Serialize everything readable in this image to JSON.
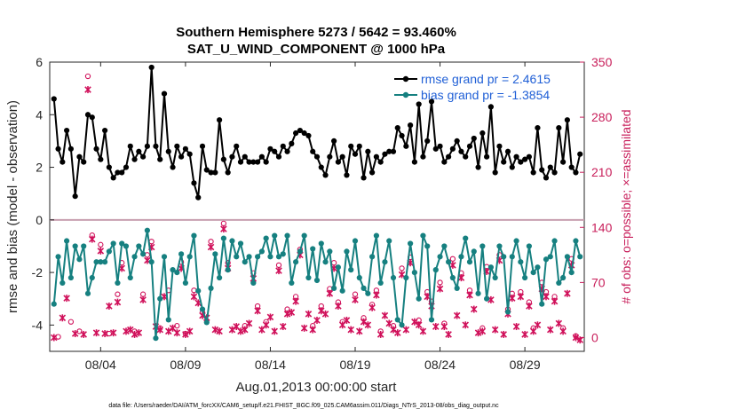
{
  "chart_data": {
    "type": "line",
    "title_line1": "Southern Hemisphere 5273 / 5642 = 93.460%",
    "title_line2": "SAT_U_WIND_COMPONENT @ 1000 hPa",
    "xlabel": "Aug.01,2013 00:00:00 start",
    "ylabel": "rmse and bias (model - observation)",
    "y2label": "# of obs: o=possible; ×=assimilated",
    "footer": "data file: /Users/raeder/DAI/ATM_forcXX/CAM6_setup/f.e21.FHIST_BGC.f09_025.CAM6assim.011/Diags_NTrS_2013-08/obs_diag_output.nc",
    "xlim": [
      1.0,
      32.5
    ],
    "ylim": [
      -5,
      6
    ],
    "y2lim": [
      -17.5,
      350
    ],
    "x_ticks": [
      4,
      9,
      14,
      19,
      24,
      29
    ],
    "x_tick_labels": [
      "08/04",
      "08/09",
      "08/14",
      "08/19",
      "08/24",
      "08/29"
    ],
    "y_ticks": [
      -4,
      -2,
      0,
      2,
      4,
      6
    ],
    "y_tick_labels": [
      "-4",
      "-2",
      "0",
      "2",
      "4",
      "6"
    ],
    "y2_ticks": [
      0,
      70,
      140,
      210,
      280,
      350
    ],
    "y2_tick_labels": [
      "0",
      "70",
      "140",
      "210",
      "280",
      "350"
    ],
    "zero_line": 0,
    "colors": {
      "rmse": "#000000",
      "bias": "#168080",
      "obs": "#d0105a",
      "zero": "#c8a0b0",
      "legend_text": "#1f5fd6",
      "right_axis": "#c81e5a"
    },
    "x": [
      1.25,
      1.5,
      1.75,
      2.0,
      2.25,
      2.5,
      2.75,
      3.0,
      3.25,
      3.5,
      3.75,
      4.0,
      4.25,
      4.5,
      4.75,
      5.0,
      5.25,
      5.5,
      5.75,
      6.0,
      6.25,
      6.5,
      6.75,
      7.0,
      7.25,
      7.5,
      7.75,
      8.0,
      8.25,
      8.5,
      8.75,
      9.0,
      9.25,
      9.5,
      9.75,
      10.0,
      10.25,
      10.5,
      10.75,
      11.0,
      11.25,
      11.5,
      11.75,
      12.0,
      12.25,
      12.5,
      12.75,
      13.0,
      13.25,
      13.5,
      13.75,
      14.0,
      14.25,
      14.5,
      14.75,
      15.0,
      15.25,
      15.5,
      15.75,
      16.0,
      16.25,
      16.5,
      16.75,
      17.0,
      17.25,
      17.5,
      17.75,
      18.0,
      18.25,
      18.5,
      18.75,
      19.0,
      19.25,
      19.5,
      19.75,
      20.0,
      20.25,
      20.5,
      20.75,
      21.0,
      21.25,
      21.5,
      21.75,
      22.0,
      22.25,
      22.5,
      22.75,
      23.0,
      23.25,
      23.5,
      23.75,
      24.0,
      24.25,
      24.5,
      24.75,
      25.0,
      25.25,
      25.5,
      25.75,
      26.0,
      26.25,
      26.5,
      26.75,
      27.0,
      27.25,
      27.5,
      27.75,
      28.0,
      28.25,
      28.5,
      28.75,
      29.0,
      29.25,
      29.5,
      29.75,
      30.0,
      30.25,
      30.5,
      30.75,
      31.0,
      31.25,
      31.5,
      31.75,
      32.0,
      32.25
    ],
    "series": [
      {
        "name": "rmse grand pr = 2.4615",
        "values": [
          4.6,
          2.7,
          2.2,
          3.4,
          2.7,
          0.9,
          2.4,
          2.2,
          4.0,
          3.9,
          2.7,
          2.3,
          3.4,
          2.0,
          1.6,
          1.8,
          1.8,
          2.0,
          2.8,
          2.3,
          2.6,
          2.4,
          2.8,
          5.8,
          2.8,
          2.3,
          4.8,
          2.6,
          2.0,
          2.8,
          2.4,
          2.7,
          2.5,
          1.4,
          0.85,
          2.8,
          1.9,
          1.8,
          1.8,
          3.8,
          2.3,
          1.8,
          2.4,
          2.8,
          2.2,
          2.4,
          2.2,
          2.2,
          2.2,
          2.4,
          2.2,
          2.7,
          2.6,
          2.4,
          2.8,
          2.6,
          2.9,
          3.3,
          3.4,
          3.3,
          3.2,
          2.6,
          2.4,
          2.0,
          1.7,
          2.4,
          3.0,
          2.2,
          2.4,
          1.7,
          2.8,
          2.5,
          2.8,
          1.6,
          2.6,
          1.8,
          2.4,
          2.2,
          2.5,
          2.6,
          2.6,
          3.5,
          3.2,
          2.8,
          3.6,
          2.2,
          4.4,
          2.4,
          3.0,
          4.5,
          2.7,
          2.8,
          2.2,
          2.4,
          2.7,
          3.0,
          2.6,
          2.4,
          2.8,
          3.1,
          2.0,
          3.3,
          2.4,
          4.3,
          1.8,
          2.8,
          2.2,
          2.6,
          2.0,
          2.4,
          2.2,
          2.3,
          2.4,
          1.8,
          3.5,
          1.9,
          1.6,
          2.0,
          1.8,
          3.5,
          2.2,
          3.8,
          2.0,
          1.8,
          2.5
        ],
        "color": "#000000",
        "marker": "star-filled"
      },
      {
        "name": "bias grand pr = -1.3854",
        "values": [
          -3.2,
          -1.4,
          -2.4,
          -0.8,
          -2.2,
          -1.0,
          -1.5,
          -1.0,
          -2.8,
          -2.2,
          -1.6,
          -1.6,
          -1.6,
          -1.2,
          -0.9,
          -2.4,
          -0.9,
          -1.0,
          -2.2,
          -1.4,
          -1.0,
          -1.3,
          -0.4,
          -1.6,
          -4.5,
          -3.0,
          -1.4,
          -3.8,
          -1.9,
          -2.0,
          -1.3,
          -2.4,
          -1.4,
          -0.6,
          -2.7,
          -3.4,
          -3.9,
          -2.6,
          -1.3,
          -2.2,
          -0.7,
          -1.9,
          -0.8,
          -1.4,
          -0.9,
          -1.6,
          -1.4,
          -2.4,
          -1.4,
          -1.2,
          -0.7,
          -1.4,
          -0.6,
          -1.4,
          -1.3,
          -0.6,
          -2.4,
          -1.6,
          -1.2,
          -0.6,
          -2.2,
          -1.1,
          -2.3,
          -0.9,
          -1.6,
          -1.2,
          -2.6,
          -1.8,
          -2.7,
          -1.2,
          -1.9,
          -0.8,
          -2.2,
          -2.6,
          -2.8,
          -1.4,
          -0.6,
          -2.4,
          -1.6,
          -0.8,
          -2.2,
          -3.8,
          -4.0,
          -2.2,
          -0.9,
          -2.0,
          -3.0,
          -0.6,
          -1.0,
          -3.8,
          -1.9,
          -1.4,
          -1.0,
          -1.6,
          -2.2,
          -2.6,
          -1.4,
          -0.7,
          -1.6,
          -1.2,
          -2.8,
          -1.0,
          -3.0,
          -1.8,
          -2.2,
          -1.0,
          -1.4,
          -3.5,
          -1.4,
          -0.8,
          -1.6,
          -2.2,
          -1.0,
          -2.0,
          -1.8,
          -3.2,
          -1.5,
          -1.4,
          -0.8,
          -2.4,
          -2.2,
          -1.4,
          -2.0,
          -0.8,
          -1.4
        ],
        "color": "#168080",
        "marker": "dot-filled"
      }
    ],
    "obs_possible": [
      [
        1.5,
        1
      ],
      [
        2.25,
        20
      ],
      [
        2.75,
        8
      ],
      [
        3.25,
        332
      ],
      [
        3.5,
        130
      ],
      [
        4.0,
        118
      ],
      [
        4.5,
        5
      ],
      [
        5.0,
        55
      ],
      [
        5.25,
        95
      ],
      [
        6.0,
        8
      ],
      [
        6.5,
        55
      ],
      [
        6.75,
        105
      ],
      [
        7.0,
        122
      ],
      [
        7.5,
        12
      ],
      [
        8.0,
        60
      ],
      [
        8.5,
        15
      ],
      [
        8.75,
        96
      ],
      [
        9.0,
        5
      ],
      [
        9.5,
        60
      ],
      [
        10.0,
        32
      ],
      [
        10.5,
        122
      ],
      [
        11.25,
        145
      ],
      [
        11.5,
        95
      ],
      [
        12.5,
        15
      ],
      [
        13.0,
        82
      ],
      [
        13.25,
        40
      ],
      [
        13.75,
        20
      ],
      [
        14.5,
        92
      ],
      [
        15.0,
        36
      ],
      [
        15.5,
        52
      ],
      [
        15.75,
        112
      ],
      [
        16.5,
        15
      ],
      [
        17.0,
        40
      ],
      [
        17.5,
        62
      ],
      [
        17.75,
        95
      ],
      [
        18.0,
        45
      ],
      [
        18.25,
        20
      ],
      [
        19.0,
        55
      ],
      [
        19.5,
        25
      ],
      [
        20.0,
        42
      ],
      [
        20.25,
        60
      ],
      [
        20.5,
        8
      ],
      [
        21.25,
        15
      ],
      [
        21.75,
        88
      ],
      [
        22.25,
        102
      ],
      [
        22.75,
        22
      ],
      [
        23.25,
        58
      ],
      [
        23.5,
        46
      ],
      [
        24.0,
        70
      ],
      [
        24.25,
        18
      ],
      [
        24.75,
        100
      ],
      [
        25.25,
        82
      ],
      [
        25.75,
        60
      ],
      [
        26.5,
        12
      ],
      [
        26.75,
        90
      ],
      [
        27.5,
        105
      ],
      [
        28.0,
        36
      ],
      [
        28.25,
        56
      ],
      [
        28.75,
        58
      ],
      [
        29.25,
        45
      ],
      [
        29.5,
        12
      ],
      [
        30.0,
        70
      ],
      [
        30.25,
        58
      ],
      [
        30.75,
        52
      ],
      [
        31.25,
        12
      ],
      [
        31.75,
        100
      ],
      [
        32.0,
        2
      ]
    ],
    "obs_assimilated": [
      [
        1.25,
        0
      ],
      [
        1.75,
        25
      ],
      [
        2.0,
        50
      ],
      [
        2.5,
        5
      ],
      [
        3.0,
        4
      ],
      [
        3.25,
        315
      ],
      [
        3.5,
        125
      ],
      [
        3.75,
        6
      ],
      [
        4.0,
        110
      ],
      [
        4.25,
        5
      ],
      [
        4.5,
        40
      ],
      [
        4.75,
        6
      ],
      [
        5.0,
        45
      ],
      [
        5.25,
        88
      ],
      [
        5.5,
        8
      ],
      [
        5.75,
        10
      ],
      [
        6.0,
        4
      ],
      [
        6.25,
        6
      ],
      [
        6.5,
        48
      ],
      [
        6.75,
        98
      ],
      [
        7.0,
        115
      ],
      [
        7.25,
        14
      ],
      [
        7.5,
        10
      ],
      [
        7.75,
        52
      ],
      [
        8.0,
        8
      ],
      [
        8.25,
        12
      ],
      [
        8.5,
        6
      ],
      [
        8.75,
        88
      ],
      [
        9.0,
        4
      ],
      [
        9.25,
        8
      ],
      [
        9.5,
        52
      ],
      [
        9.75,
        44
      ],
      [
        10.0,
        28
      ],
      [
        10.25,
        25
      ],
      [
        10.5,
        115
      ],
      [
        10.75,
        10
      ],
      [
        11.0,
        8
      ],
      [
        11.25,
        138
      ],
      [
        11.5,
        88
      ],
      [
        11.75,
        10
      ],
      [
        12.0,
        14
      ],
      [
        12.25,
        8
      ],
      [
        12.5,
        10
      ],
      [
        12.75,
        18
      ],
      [
        13.0,
        75
      ],
      [
        13.25,
        34
      ],
      [
        13.5,
        10
      ],
      [
        13.75,
        16
      ],
      [
        14.0,
        26
      ],
      [
        14.25,
        8
      ],
      [
        14.5,
        85
      ],
      [
        14.75,
        14
      ],
      [
        15.0,
        30
      ],
      [
        15.25,
        32
      ],
      [
        15.5,
        46
      ],
      [
        15.75,
        105
      ],
      [
        16.0,
        12
      ],
      [
        16.25,
        30
      ],
      [
        16.5,
        10
      ],
      [
        16.75,
        22
      ],
      [
        17.0,
        34
      ],
      [
        17.25,
        30
      ],
      [
        17.5,
        56
      ],
      [
        17.75,
        88
      ],
      [
        18.0,
        40
      ],
      [
        18.25,
        16
      ],
      [
        18.5,
        22
      ],
      [
        18.75,
        10
      ],
      [
        19.0,
        48
      ],
      [
        19.25,
        8
      ],
      [
        19.5,
        20
      ],
      [
        19.75,
        16
      ],
      [
        20.0,
        38
      ],
      [
        20.25,
        54
      ],
      [
        20.5,
        4
      ],
      [
        20.75,
        28
      ],
      [
        21.0,
        18
      ],
      [
        21.25,
        10
      ],
      [
        21.5,
        6
      ],
      [
        21.75,
        80
      ],
      [
        22.0,
        10
      ],
      [
        22.25,
        95
      ],
      [
        22.5,
        20
      ],
      [
        22.75,
        16
      ],
      [
        23.0,
        8
      ],
      [
        23.25,
        52
      ],
      [
        23.5,
        40
      ],
      [
        23.75,
        14
      ],
      [
        24.0,
        62
      ],
      [
        24.25,
        14
      ],
      [
        24.5,
        4
      ],
      [
        24.75,
        92
      ],
      [
        25.0,
        28
      ],
      [
        25.25,
        76
      ],
      [
        25.5,
        16
      ],
      [
        25.75,
        54
      ],
      [
        26.0,
        36
      ],
      [
        26.25,
        6
      ],
      [
        26.5,
        8
      ],
      [
        26.75,
        84
      ],
      [
        27.0,
        48
      ],
      [
        27.25,
        10
      ],
      [
        27.5,
        98
      ],
      [
        27.75,
        4
      ],
      [
        28.0,
        30
      ],
      [
        28.25,
        50
      ],
      [
        28.5,
        14
      ],
      [
        28.75,
        52
      ],
      [
        29.0,
        4
      ],
      [
        29.25,
        40
      ],
      [
        29.5,
        8
      ],
      [
        29.75,
        16
      ],
      [
        30.0,
        62
      ],
      [
        30.25,
        52
      ],
      [
        30.5,
        10
      ],
      [
        30.75,
        46
      ],
      [
        31.0,
        18
      ],
      [
        31.25,
        8
      ],
      [
        31.5,
        56
      ],
      [
        31.75,
        92
      ],
      [
        32.0,
        0
      ],
      [
        32.25,
        -3
      ]
    ]
  }
}
